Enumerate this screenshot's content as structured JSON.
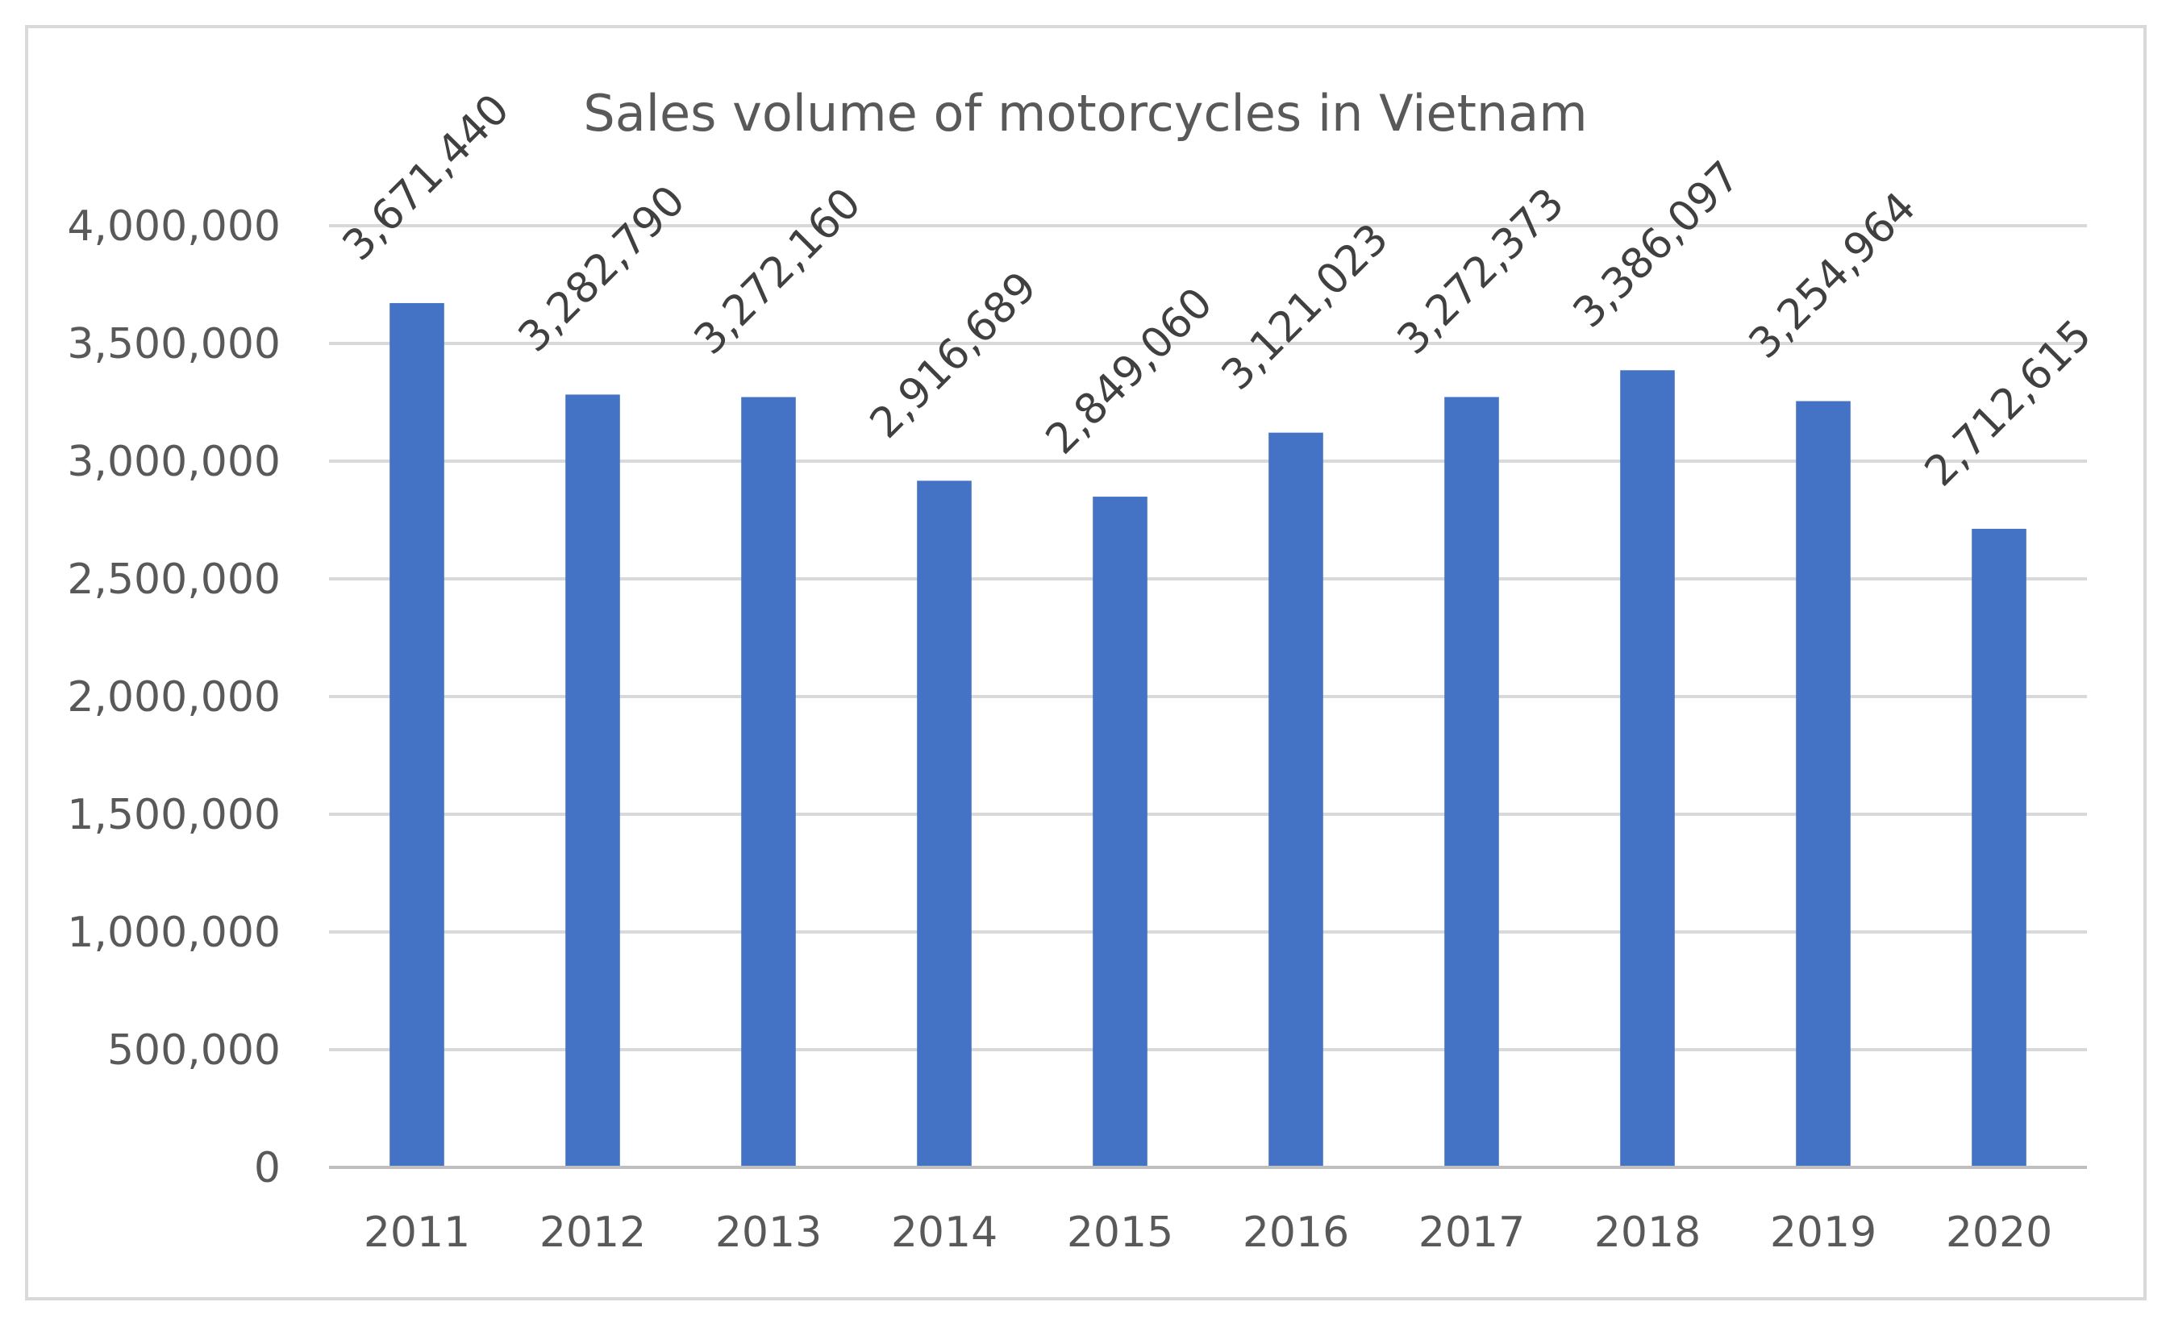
{
  "chart_data": {
    "type": "bar",
    "title": "Sales volume of motorcycles in Vietnam",
    "xlabel": "",
    "ylabel": "",
    "categories": [
      "2011",
      "2012",
      "2013",
      "2014",
      "2015",
      "2016",
      "2017",
      "2018",
      "2019",
      "2020"
    ],
    "values": [
      3671440,
      3282790,
      3272160,
      2916689,
      2849060,
      3121023,
      3272373,
      3386097,
      3254964,
      2712615
    ],
    "data_labels": [
      "3,671,440",
      "3,282,790",
      "3,272,160",
      "2,916,689",
      "2,849,060",
      "3,121,023",
      "3,272,373",
      "3,386,097",
      "3,254,964",
      "2,712,615"
    ],
    "ylim": [
      0,
      4000000
    ],
    "yticks": [
      0,
      500000,
      1000000,
      1500000,
      2000000,
      2500000,
      3000000,
      3500000,
      4000000
    ],
    "ytick_labels": [
      "0",
      "500,000",
      "1,000,000",
      "1,500,000",
      "2,000,000",
      "2,500,000",
      "3,000,000",
      "3,500,000",
      "4,000,000"
    ],
    "grid": true,
    "legend": "none",
    "bar_color": "#4472C4"
  }
}
